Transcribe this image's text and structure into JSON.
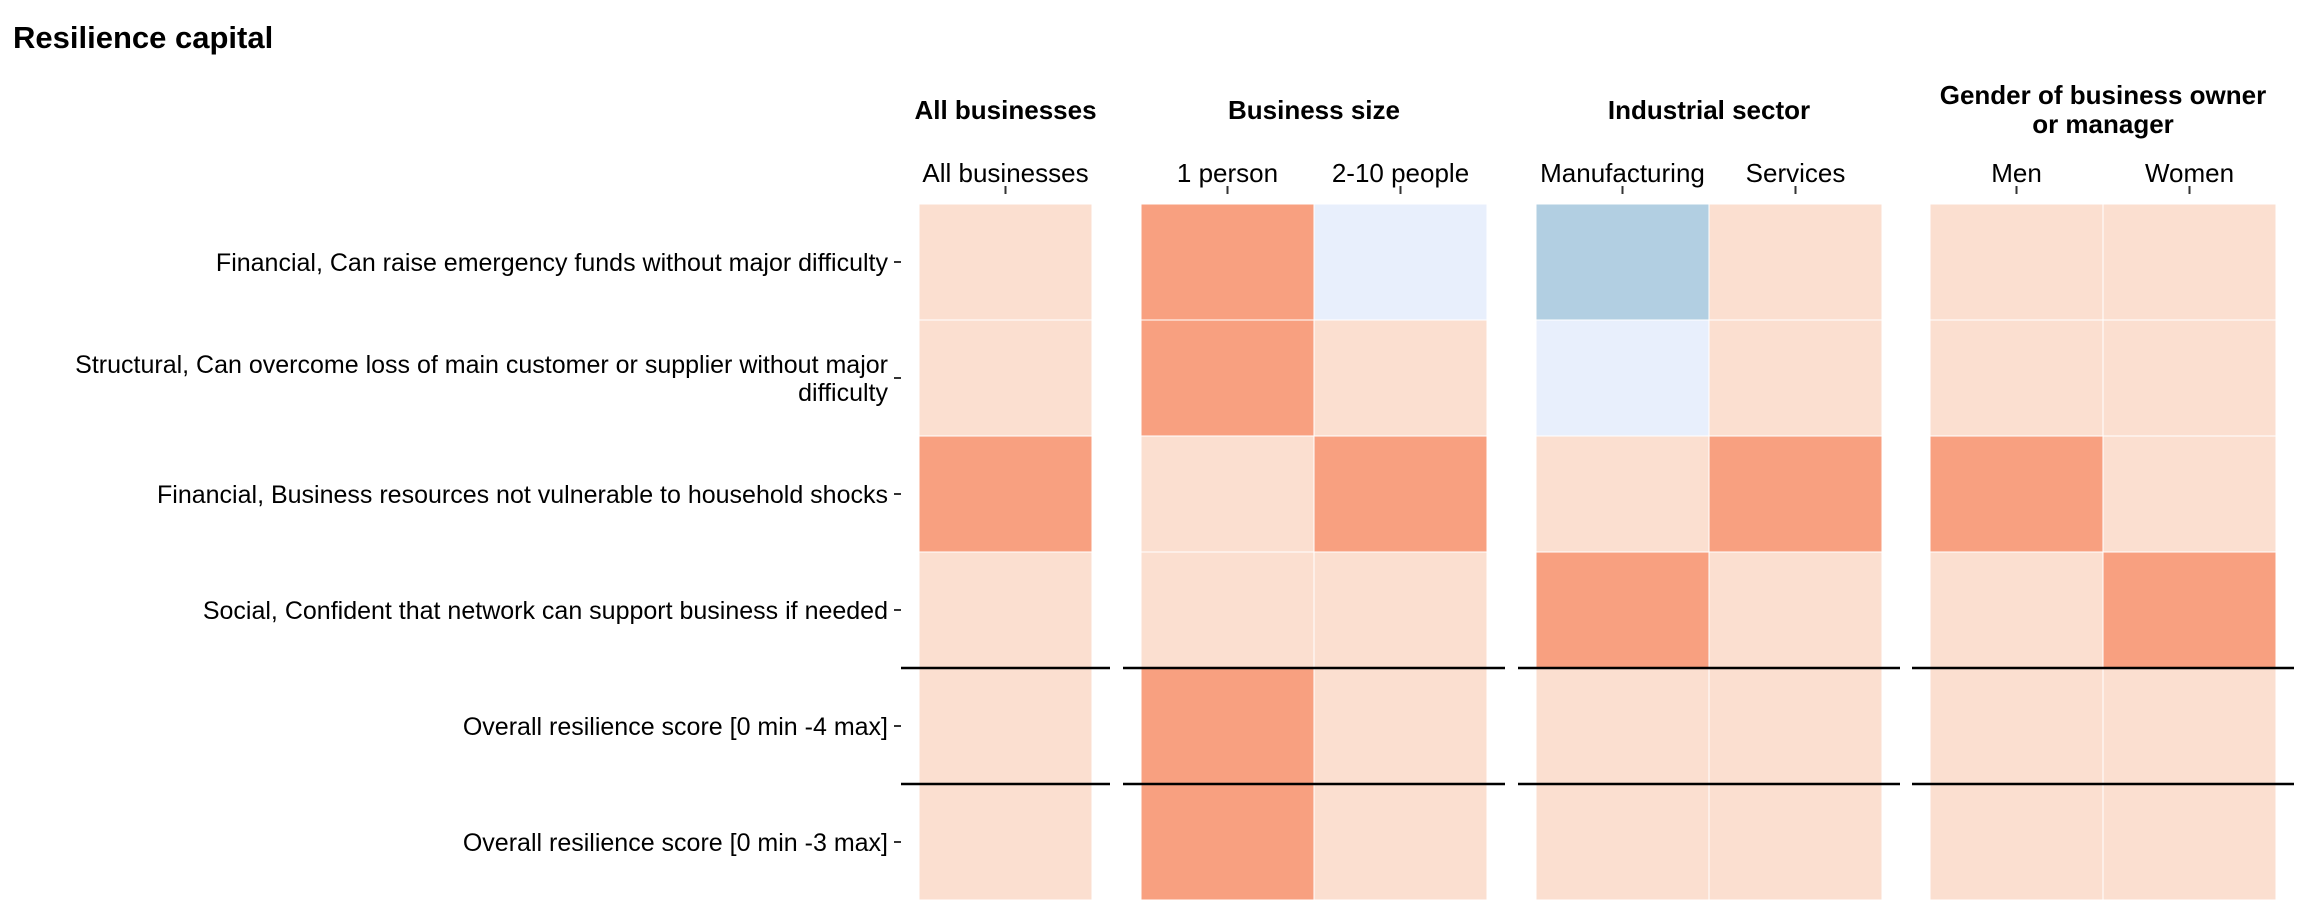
{
  "colors": {
    "high": "#f8a080",
    "neutral": "#fbdfd0",
    "low_strong": "#b2cfe2",
    "low_light": "#e8effc",
    "rule": "#000000",
    "cell_border": "#ffffff"
  },
  "chart_data": {
    "type": "heatmap",
    "title": "Resilience capital",
    "rows": [
      [
        "Financial, Can raise emergency funds without major difficulty"
      ],
      [
        "Structural, Can overcome loss of main customer or supplier without major",
        "difficulty"
      ],
      [
        "Financial, Business resources not vulnerable to household shocks"
      ],
      [
        "Social, Confident that network can support business if needed"
      ],
      [
        "Overall resilience score [0 min -4 max]"
      ],
      [
        "Overall resilience score [0 min -3 max]"
      ]
    ],
    "separator_after_rows": [
      4,
      5
    ],
    "panels": [
      {
        "title": [
          "All businesses"
        ],
        "columns": [
          "All businesses"
        ]
      },
      {
        "title": [
          "Business size"
        ],
        "columns": [
          "1 person",
          "2-10 people"
        ]
      },
      {
        "title": [
          "Industrial sector"
        ],
        "columns": [
          "Manufacturing",
          "Services"
        ]
      },
      {
        "title": [
          "Gender of business owner",
          "or manager"
        ],
        "columns": [
          "Men",
          "Women"
        ]
      }
    ],
    "cell_categories_note": "cell colour category per row (top to bottom) for each column, left to right",
    "cells": [
      [
        "neutral",
        "neutral",
        "high",
        "neutral",
        "neutral",
        "neutral"
      ],
      [
        "high",
        "high",
        "neutral",
        "neutral",
        "high",
        "high"
      ],
      [
        "low_light",
        "neutral",
        "high",
        "neutral",
        "neutral",
        "neutral"
      ],
      [
        "low_strong",
        "low_light",
        "neutral",
        "high",
        "neutral",
        "neutral"
      ],
      [
        "neutral",
        "neutral",
        "high",
        "neutral",
        "neutral",
        "neutral"
      ],
      [
        "neutral",
        "neutral",
        "high",
        "neutral",
        "neutral",
        "neutral"
      ],
      [
        "neutral",
        "neutral",
        "neutral",
        "high",
        "neutral",
        "neutral"
      ]
    ],
    "legend": "none",
    "grid": false
  }
}
